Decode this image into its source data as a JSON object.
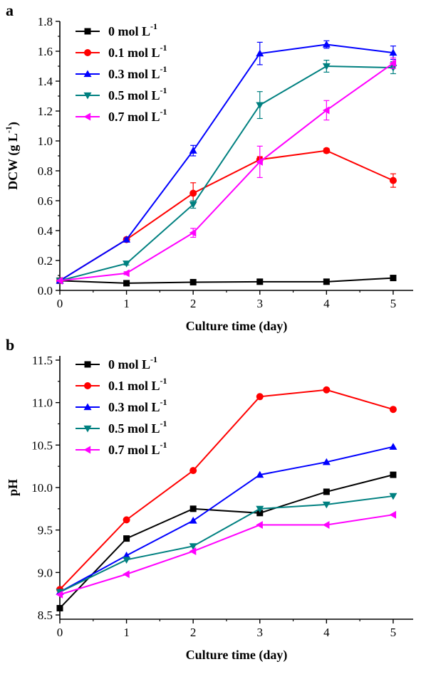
{
  "chart_data": [
    {
      "panel": "a",
      "type": "line",
      "xlabel": "Culture time (day)",
      "ylabel": "DCW (g L",
      "ylabel_sup": "-1",
      "ylabel_tail": ")",
      "xlim": [
        0,
        5.3
      ],
      "ylim": [
        0,
        1.8
      ],
      "xticks": [
        "0",
        "1",
        "2",
        "3",
        "4",
        "5"
      ],
      "yticks": [
        "0.0",
        "0.2",
        "0.4",
        "0.6",
        "0.8",
        "1.0",
        "1.2",
        "1.4",
        "1.6",
        "1.8"
      ],
      "x": [
        0,
        1,
        2,
        3,
        4,
        5
      ],
      "series": [
        {
          "name": "0 mol L",
          "sup": "-1",
          "color": "#000000",
          "marker": "square",
          "values": [
            0.065,
            0.048,
            0.055,
            0.058,
            0.058,
            0.083
          ],
          "errors": [
            0,
            0,
            0,
            0,
            0,
            0.005
          ]
        },
        {
          "name": "0.1 mol L",
          "sup": "-1",
          "color": "#ff0000",
          "marker": "circle",
          "values": [
            0.065,
            0.34,
            0.65,
            0.875,
            0.935,
            0.735
          ],
          "errors": [
            0,
            0.01,
            0.07,
            0.02,
            0.015,
            0.045
          ]
        },
        {
          "name": "0.3 mol L",
          "sup": "-1",
          "color": "#0000ff",
          "marker": "triangle-up",
          "values": [
            0.065,
            0.34,
            0.935,
            1.585,
            1.645,
            1.59
          ],
          "errors": [
            0,
            0.01,
            0.035,
            0.075,
            0.025,
            0.045
          ]
        },
        {
          "name": "0.5 mol L",
          "sup": "-1",
          "color": "#008080",
          "marker": "triangle-down",
          "values": [
            0.065,
            0.18,
            0.575,
            1.24,
            1.5,
            1.49
          ],
          "errors": [
            0,
            0.01,
            0.025,
            0.09,
            0.04,
            0.04
          ]
        },
        {
          "name": "0.7 mol L",
          "sup": "-1",
          "color": "#ff00ff",
          "marker": "triangle-left",
          "values": [
            0.065,
            0.115,
            0.385,
            0.86,
            1.205,
            1.52
          ],
          "errors": [
            0,
            0.01,
            0.03,
            0.105,
            0.065,
            0.035
          ]
        }
      ]
    },
    {
      "panel": "b",
      "type": "line",
      "xlabel": "Culture time (day)",
      "ylabel": "pH",
      "xlim": [
        0,
        5.3
      ],
      "ylim": [
        8.45,
        11.55
      ],
      "xticks": [
        "0",
        "1",
        "2",
        "3",
        "4",
        "5"
      ],
      "yticks": [
        "8.5",
        "9.0",
        "9.5",
        "10.0",
        "10.5",
        "11.0",
        "11.5"
      ],
      "x": [
        0,
        1,
        2,
        3,
        4,
        5
      ],
      "series": [
        {
          "name": "0 mol L",
          "sup": "-1",
          "color": "#000000",
          "marker": "square",
          "values": [
            8.58,
            9.4,
            9.75,
            9.7,
            9.95,
            10.15
          ]
        },
        {
          "name": "0.1 mol L",
          "sup": "-1",
          "color": "#ff0000",
          "marker": "circle",
          "values": [
            8.8,
            9.62,
            10.2,
            11.07,
            11.15,
            10.92
          ]
        },
        {
          "name": "0.3 mol L",
          "sup": "-1",
          "color": "#0000ff",
          "marker": "triangle-up",
          "values": [
            8.77,
            9.2,
            9.61,
            10.15,
            10.3,
            10.48
          ]
        },
        {
          "name": "0.5 mol L",
          "sup": "-1",
          "color": "#008080",
          "marker": "triangle-down",
          "values": [
            8.77,
            9.15,
            9.31,
            9.75,
            9.8,
            9.9
          ]
        },
        {
          "name": "0.7 mol L",
          "sup": "-1",
          "color": "#ff00ff",
          "marker": "triangle-left",
          "values": [
            8.74,
            8.98,
            9.25,
            9.56,
            9.56,
            9.68
          ]
        }
      ]
    }
  ]
}
